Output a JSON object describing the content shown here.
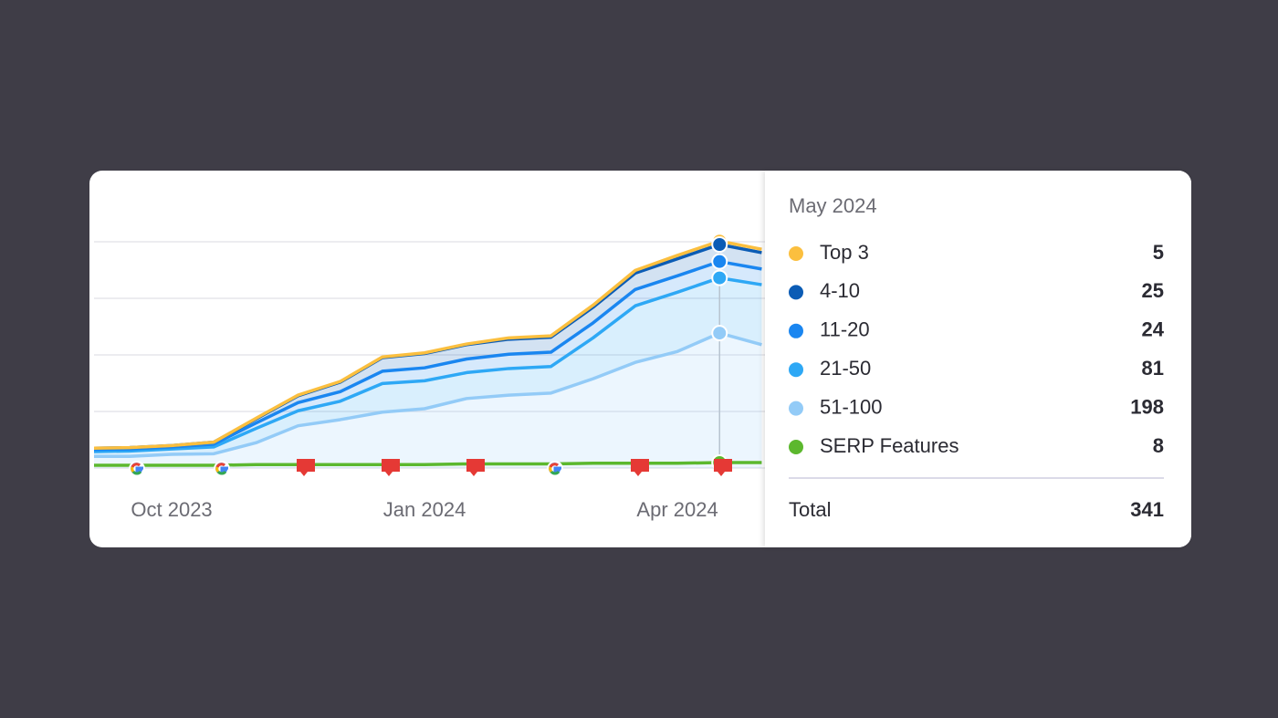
{
  "chart_data": {
    "type": "area",
    "categories": [
      null,
      null,
      "Oct 2023",
      null,
      null,
      null,
      null,
      null,
      "Jan 2024",
      null,
      null,
      null,
      null,
      null,
      "Apr 2024",
      null,
      null
    ],
    "ylim": [
      0,
      415
    ],
    "yticks": [
      0,
      83,
      166,
      249,
      332
    ],
    "grid": true,
    "series": [
      {
        "name": "Top 3",
        "color": "#fbbf3f",
        "stacked": true,
        "values": [
          0,
          0,
          0,
          0,
          1,
          1,
          1,
          1,
          1,
          1,
          2,
          2,
          3,
          4,
          5,
          5,
          5
        ]
      },
      {
        "name": "4-10",
        "color": "#0b5cb5",
        "stacked": true,
        "values": [
          2,
          2,
          2,
          3,
          6,
          10,
          14,
          20,
          21,
          21,
          22,
          22,
          23,
          24,
          25,
          25,
          24
        ]
      },
      {
        "name": "11-20",
        "color": "#1a86f0",
        "stacked": true,
        "values": [
          3,
          3,
          3,
          4,
          8,
          12,
          14,
          18,
          19,
          20,
          21,
          21,
          22,
          24,
          24,
          24,
          23
        ]
      },
      {
        "name": "21-50",
        "color": "#2ea8f5",
        "stacked": true,
        "values": [
          7,
          8,
          8,
          10,
          21,
          22,
          27,
          42,
          41,
          38,
          39,
          39,
          60,
          83,
          87,
          81,
          88
        ]
      },
      {
        "name": "51-100",
        "color": "#93cbf7",
        "stacked": true,
        "values": [
          17,
          17,
          20,
          21,
          37,
          62,
          71,
          82,
          87,
          102,
          107,
          110,
          131,
          155,
          171,
          198,
          181
        ]
      },
      {
        "name": "SERP Features",
        "color": "#5cb82e",
        "stacked": false,
        "values": [
          4,
          4,
          4,
          4,
          5,
          5,
          5,
          5,
          5,
          6,
          6,
          6,
          7,
          7,
          7,
          8,
          8
        ]
      }
    ],
    "tooltip": {
      "title": "May 2024",
      "total_label": "Total",
      "total": 341
    }
  }
}
